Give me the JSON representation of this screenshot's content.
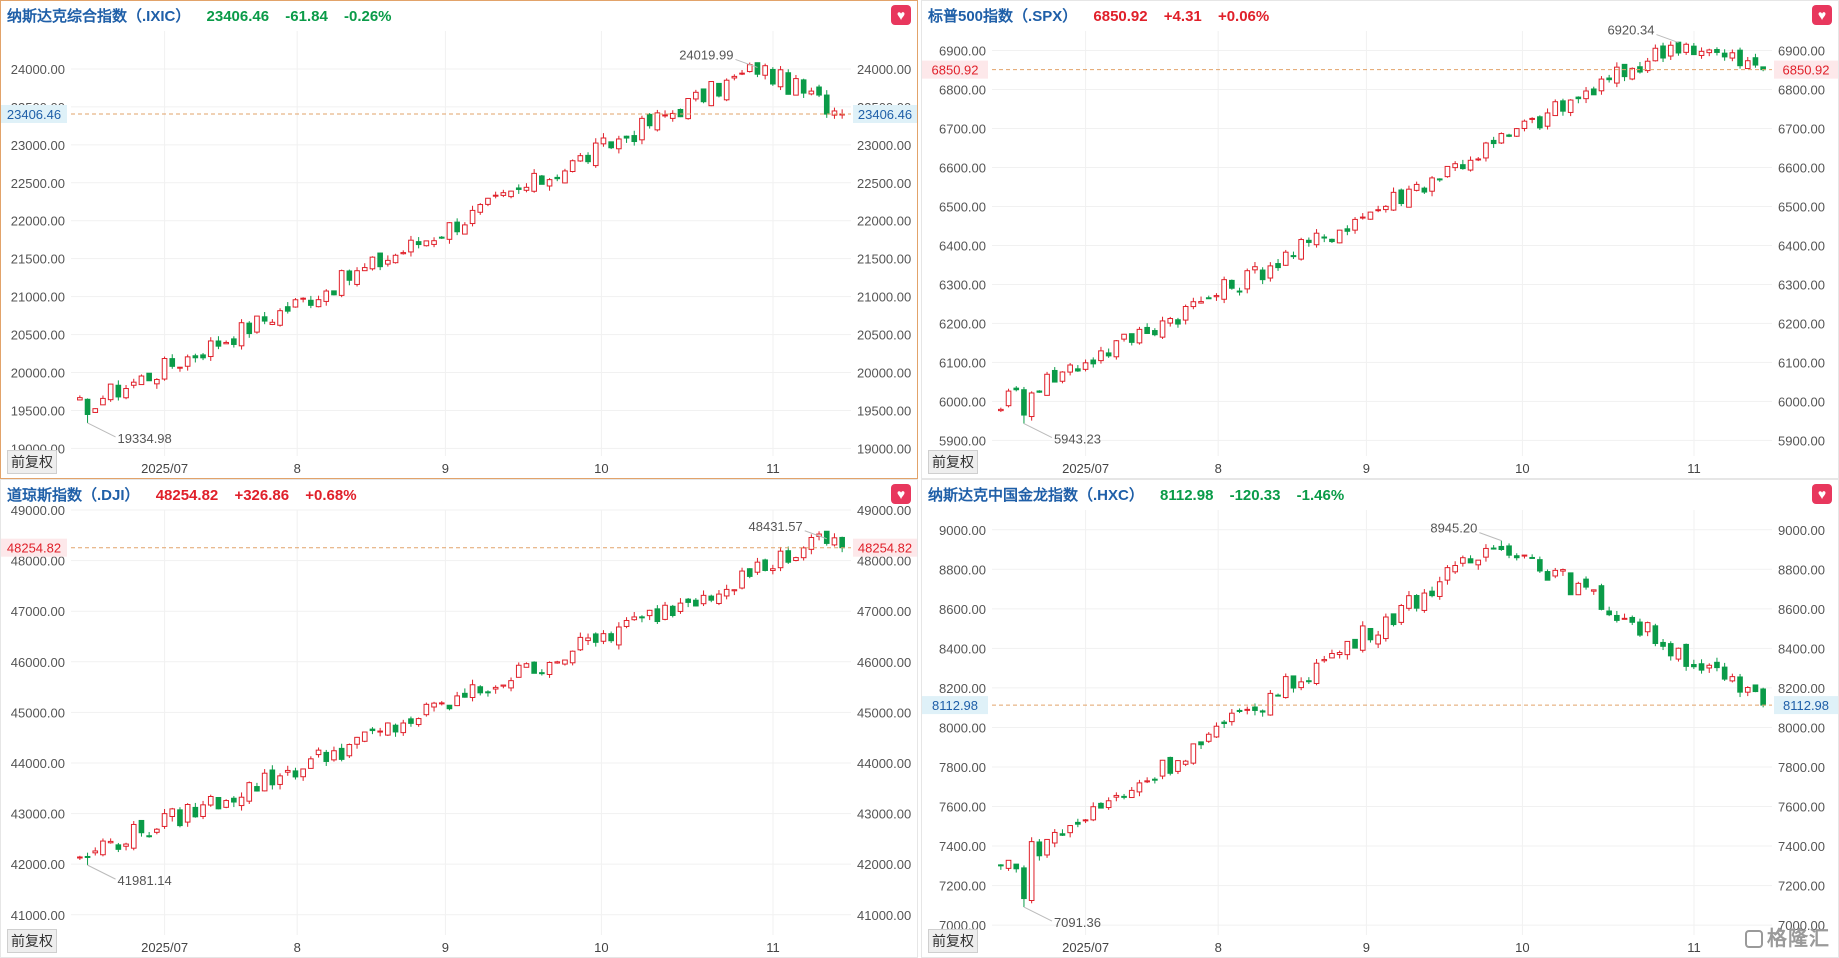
{
  "brand_label": "格隆汇",
  "adjust_label": "前复权",
  "colors": {
    "up": "#e0202a",
    "down": "#0a9b48",
    "name": "#1f5fa8",
    "price_line": "#e2a36a"
  },
  "chart_data": [
    {
      "type": "candlestick",
      "name": "纳斯达克综合指数（.IXIC）",
      "price": "23406.46",
      "change": "-61.84",
      "change_pct": "-0.26%",
      "direction": "down",
      "current": 23406.46,
      "current_label": "23406.46",
      "ylim": [
        18900,
        24500
      ],
      "yticks": [
        19000,
        19500,
        20000,
        20500,
        21000,
        21500,
        22000,
        22500,
        23000,
        23500,
        24000
      ],
      "ytick_labels": [
        "19000.00",
        "19500.00",
        "20000.00",
        "20500.00",
        "21000.00",
        "21500.00",
        "22000.00",
        "22500.00",
        "23000.00",
        "23500.00",
        "24000.00"
      ],
      "start": 19560,
      "end": 23406.46,
      "low": 19334.98,
      "low_label": "19334.98",
      "low_idx": 1,
      "peak": 24019.99,
      "peak_label": "24019.99",
      "peak_idx": 88,
      "x_ticks": [
        {
          "label": "2025/07",
          "pos": 0.12
        },
        {
          "label": "8",
          "pos": 0.29
        },
        {
          "label": "9",
          "pos": 0.48
        },
        {
          "label": "10",
          "pos": 0.68
        },
        {
          "label": "11",
          "pos": 0.9
        }
      ]
    },
    {
      "type": "candlestick",
      "name": "标普500指数（.SPX）",
      "price": "6850.92",
      "change": "+4.31",
      "change_pct": "+0.06%",
      "direction": "up",
      "current": 6850.92,
      "current_label": "6850.92",
      "ylim": [
        5860,
        6950
      ],
      "yticks": [
        5900,
        6000,
        6100,
        6200,
        6300,
        6400,
        6500,
        6600,
        6700,
        6800,
        6900
      ],
      "ytick_labels": [
        "5900.00",
        "6000.00",
        "6100.00",
        "6200.00",
        "6300.00",
        "6400.00",
        "6500.00",
        "6600.00",
        "6700.00",
        "6800.00",
        "6900.00"
      ],
      "start": 6000,
      "end": 6850.92,
      "low": 5943.23,
      "low_label": "5943.23",
      "low_idx": 3,
      "peak": 6920.34,
      "peak_label": "6920.34",
      "peak_idx": 88,
      "x_ticks": [
        {
          "label": "2025/07",
          "pos": 0.12
        },
        {
          "label": "8",
          "pos": 0.29
        },
        {
          "label": "9",
          "pos": 0.48
        },
        {
          "label": "10",
          "pos": 0.68
        },
        {
          "label": "11",
          "pos": 0.9
        }
      ]
    },
    {
      "type": "candlestick",
      "name": "道琼斯指数（.DJI）",
      "price": "48254.82",
      "change": "+326.86",
      "change_pct": "+0.68%",
      "direction": "up",
      "current": 48254.82,
      "current_label": "48254.82",
      "ylim": [
        40600,
        49000
      ],
      "yticks": [
        41000,
        42000,
        43000,
        44000,
        45000,
        46000,
        47000,
        48000,
        49000
      ],
      "ytick_labels": [
        "41000.00",
        "42000.00",
        "43000.00",
        "44000.00",
        "45000.00",
        "46000.00",
        "47000.00",
        "48000.00",
        "49000.00"
      ],
      "start": 42200,
      "end": 48254.82,
      "low": 41981.14,
      "low_label": "41981.14",
      "low_idx": 1,
      "peak": 48431.57,
      "peak_label": "48431.57",
      "peak_idx": 97,
      "x_ticks": [
        {
          "label": "2025/07",
          "pos": 0.12
        },
        {
          "label": "8",
          "pos": 0.29
        },
        {
          "label": "9",
          "pos": 0.48
        },
        {
          "label": "10",
          "pos": 0.68
        },
        {
          "label": "11",
          "pos": 0.9
        }
      ]
    },
    {
      "type": "candlestick",
      "name": "纳斯达克中国金龙指数（.HXC）",
      "price": "8112.98",
      "change": "-120.33",
      "change_pct": "-1.46%",
      "direction": "down",
      "current": 8112.98,
      "current_label": "8112.98",
      "ylim": [
        6950,
        9100
      ],
      "yticks": [
        7000,
        7200,
        7400,
        7600,
        7800,
        8000,
        8200,
        8400,
        8600,
        8800,
        9000
      ],
      "ytick_labels": [
        "7000.00",
        "7200.00",
        "7400.00",
        "7600.00",
        "7800.00",
        "8000.00",
        "8200.00",
        "8400.00",
        "8600.00",
        "8800.00",
        "9000.00"
      ],
      "start": 7290,
      "end": 8112.98,
      "low": 7091.36,
      "low_label": "7091.36",
      "low_idx": 3,
      "peak": 8945.2,
      "peak_label": "8945.20",
      "peak_idx": 65,
      "x_ticks": [
        {
          "label": "2025/07",
          "pos": 0.12
        },
        {
          "label": "8",
          "pos": 0.29
        },
        {
          "label": "9",
          "pos": 0.48
        },
        {
          "label": "10",
          "pos": 0.68
        },
        {
          "label": "11",
          "pos": 0.9
        }
      ]
    }
  ]
}
